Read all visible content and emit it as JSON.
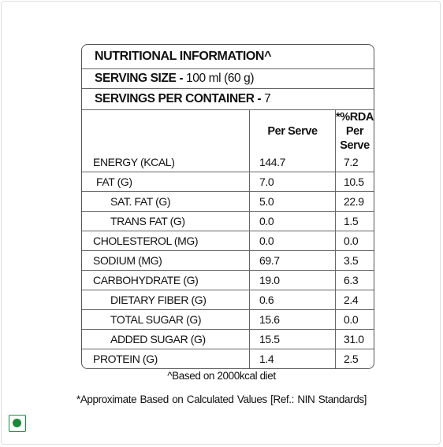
{
  "label": {
    "title": "NUTRITIONAL INFORMATION^",
    "serving_size": {
      "label": "SERVING SIZE -",
      "value": "100 ml (60 g)"
    },
    "servings_per_container": {
      "label": "SERVINGS PER CONTAINER -",
      "value": "7"
    },
    "columns": [
      "Per Serve",
      "*%RDA",
      "Per Serve"
    ],
    "rows": [
      [
        "ENERGY (KCAL)",
        "144.7",
        "7.2"
      ],
      [
        "FAT (G)",
        "7.0",
        "10.5"
      ],
      [
        "SAT. FAT (G)",
        "5.0",
        "22.9"
      ],
      [
        "TRANS FAT (G)",
        "0.0",
        "1.5"
      ],
      [
        "CHOLESTEROL (MG)",
        "0.0",
        "0.0"
      ],
      [
        "SODIUM (MG)",
        "69.7",
        "3.5"
      ],
      [
        "CARBOHYDRATE (G)",
        "19.0",
        "6.3"
      ],
      [
        "DIETARY FIBER (G)",
        "0.6",
        "2.4"
      ],
      [
        "TOTAL SUGAR (G)",
        "15.6",
        "0.0"
      ],
      [
        "ADDED SUGAR (G)",
        "15.5",
        "31.0"
      ],
      [
        "PROTEIN (G)",
        "1.4",
        "2.5"
      ]
    ]
  },
  "footnotes": [
    "^Based on 2000kcal diet",
    "*Approximate Based on Calculated Values  [Ref.: NIN Standards]"
  ]
}
